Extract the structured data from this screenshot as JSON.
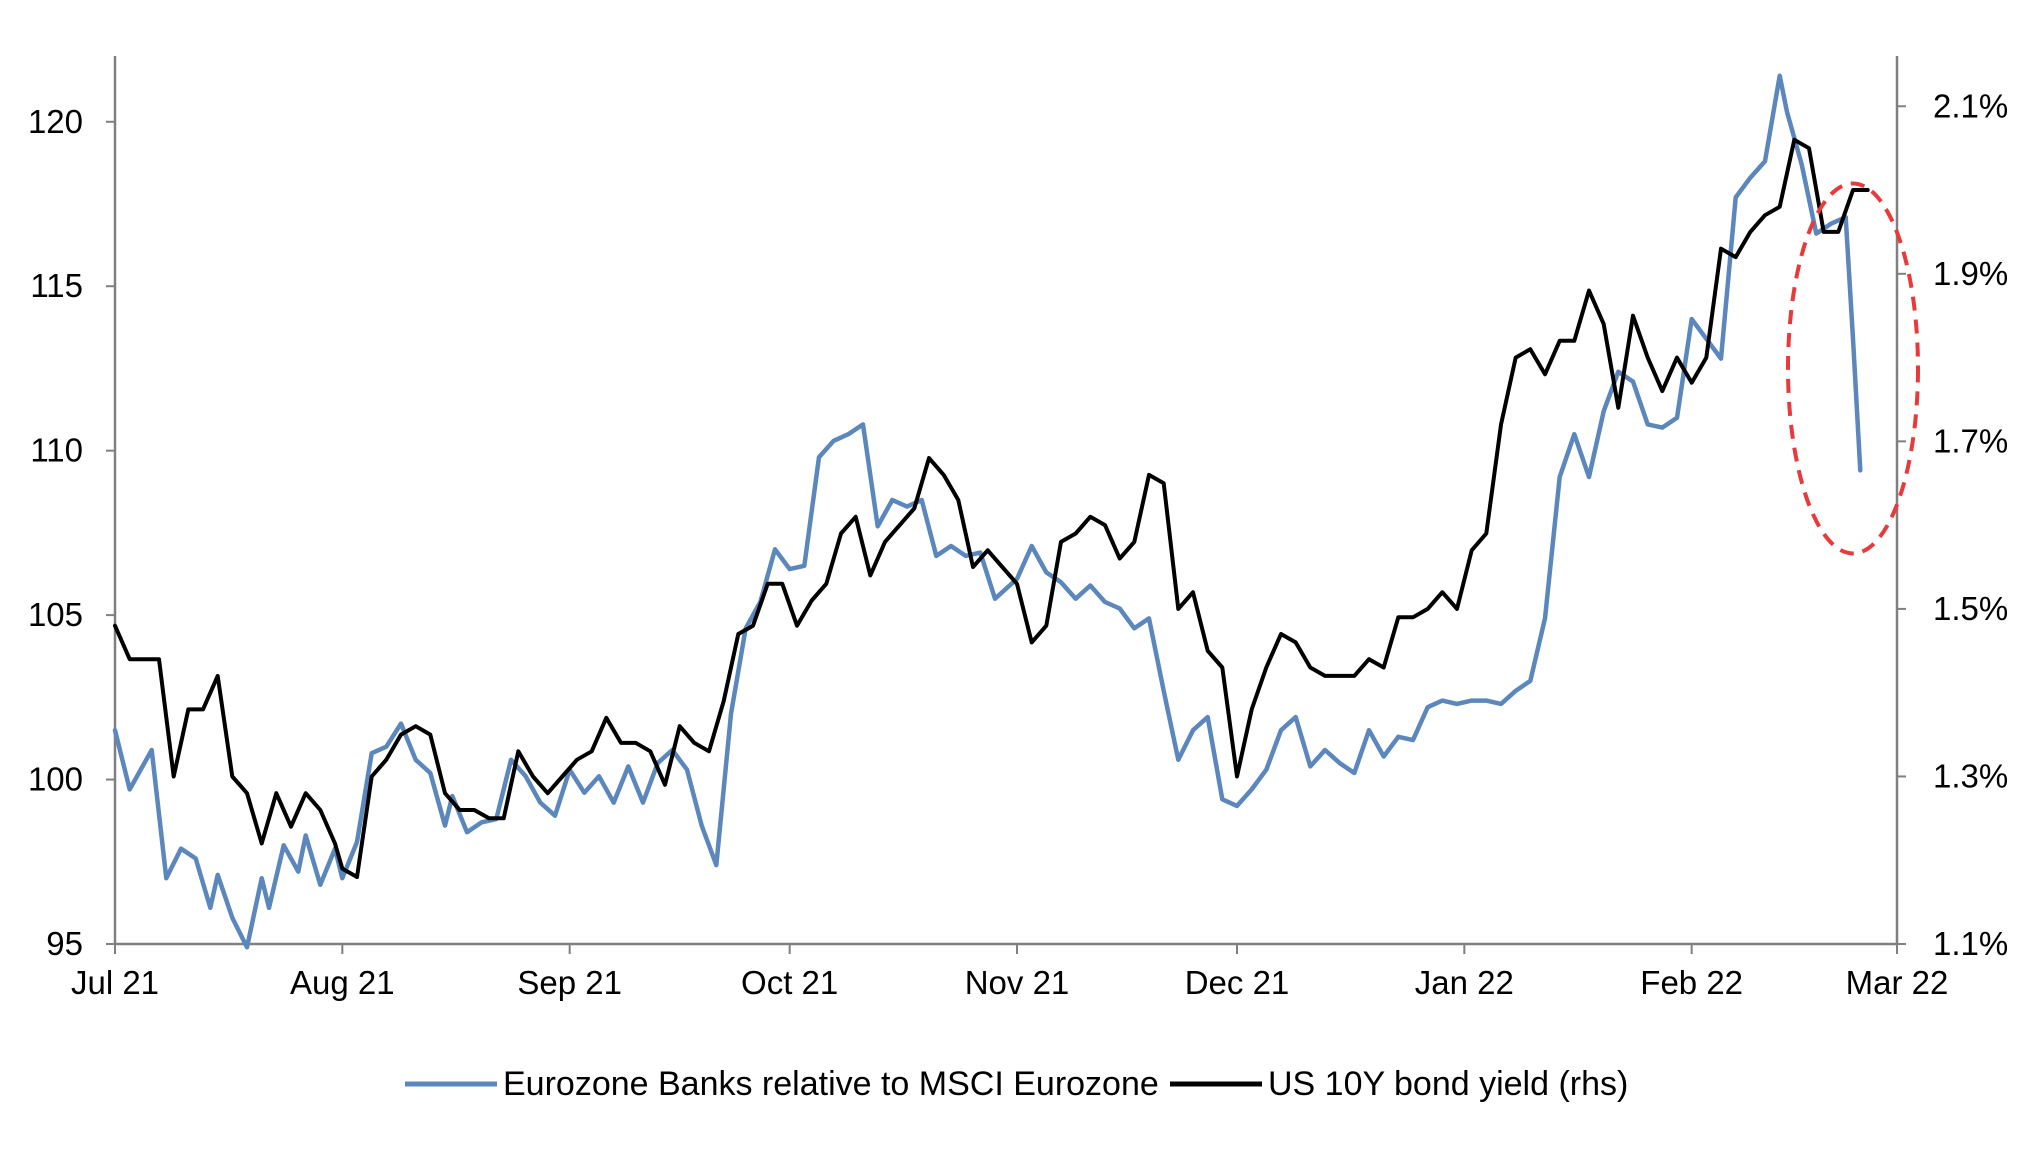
{
  "chart_data": {
    "type": "line",
    "title": "",
    "x_ticks": [
      "Jul 21",
      "Aug 21",
      "Sep 21",
      "Oct 21",
      "Nov 21",
      "Dec 21",
      "Jan 22",
      "Feb 22",
      "Mar 22"
    ],
    "x_range": [
      "2021-07-01",
      "2022-03-01"
    ],
    "y_left": {
      "label": "",
      "range": [
        95,
        122
      ],
      "ticks": [
        "95",
        "100",
        "105",
        "110",
        "115",
        "120"
      ]
    },
    "y_right": {
      "label": "",
      "range": [
        1.1,
        2.16
      ],
      "ticks": [
        "1.1%",
        "1.3%",
        "1.5%",
        "1.7%",
        "1.9%",
        "2.1%"
      ]
    },
    "grid": false,
    "legend_position": "bottom",
    "series": [
      {
        "name": "Eurozone Banks relative to MSCI Eurozone",
        "axis": "left",
        "color": "#5b87bd",
        "x": [
          "2021-07-01",
          "2021-07-03",
          "2021-07-06",
          "2021-07-08",
          "2021-07-10",
          "2021-07-12",
          "2021-07-14",
          "2021-07-15",
          "2021-07-17",
          "2021-07-19",
          "2021-07-21",
          "2021-07-22",
          "2021-07-24",
          "2021-07-26",
          "2021-07-27",
          "2021-07-29",
          "2021-07-31",
          "2021-08-01",
          "2021-08-03",
          "2021-08-05",
          "2021-08-07",
          "2021-08-09",
          "2021-08-11",
          "2021-08-13",
          "2021-08-15",
          "2021-08-16",
          "2021-08-18",
          "2021-08-20",
          "2021-08-22",
          "2021-08-24",
          "2021-08-26",
          "2021-08-28",
          "2021-08-30",
          "2021-09-01",
          "2021-09-03",
          "2021-09-05",
          "2021-09-07",
          "2021-09-09",
          "2021-09-11",
          "2021-09-13",
          "2021-09-15",
          "2021-09-17",
          "2021-09-19",
          "2021-09-21",
          "2021-09-23",
          "2021-09-25",
          "2021-09-27",
          "2021-09-29",
          "2021-10-01",
          "2021-10-03",
          "2021-10-05",
          "2021-10-07",
          "2021-10-09",
          "2021-10-11",
          "2021-10-13",
          "2021-10-15",
          "2021-10-17",
          "2021-10-19",
          "2021-10-21",
          "2021-10-23",
          "2021-10-25",
          "2021-10-27",
          "2021-10-29",
          "2021-11-01",
          "2021-11-03",
          "2021-11-05",
          "2021-11-07",
          "2021-11-09",
          "2021-11-11",
          "2021-11-13",
          "2021-11-15",
          "2021-11-17",
          "2021-11-19",
          "2021-11-21",
          "2021-11-23",
          "2021-11-25",
          "2021-11-27",
          "2021-11-29",
          "2021-12-01",
          "2021-12-03",
          "2021-12-05",
          "2021-12-07",
          "2021-12-09",
          "2021-12-11",
          "2021-12-13",
          "2021-12-15",
          "2021-12-17",
          "2021-12-19",
          "2021-12-21",
          "2021-12-23",
          "2021-12-25",
          "2021-12-27",
          "2021-12-29",
          "2021-12-31",
          "2022-01-02",
          "2022-01-04",
          "2022-01-06",
          "2022-01-08",
          "2022-01-10",
          "2022-01-12",
          "2022-01-14",
          "2022-01-16",
          "2022-01-18",
          "2022-01-20",
          "2022-01-22",
          "2022-01-24",
          "2022-01-26",
          "2022-01-28",
          "2022-01-30",
          "2022-02-01",
          "2022-02-03",
          "2022-02-05",
          "2022-02-07",
          "2022-02-09",
          "2022-02-11",
          "2022-02-13",
          "2022-02-14",
          "2022-02-16",
          "2022-02-18",
          "2022-02-20",
          "2022-02-22",
          "2022-02-23",
          "2022-02-24"
        ],
        "values": [
          101.5,
          99.7,
          100.9,
          97.0,
          97.9,
          97.6,
          96.1,
          97.1,
          95.8,
          94.9,
          97.0,
          96.1,
          98.0,
          97.2,
          98.3,
          96.8,
          97.9,
          97.0,
          98.1,
          100.8,
          101.0,
          101.7,
          100.6,
          100.2,
          98.6,
          99.5,
          98.4,
          98.7,
          98.8,
          100.6,
          100.1,
          99.3,
          98.9,
          100.3,
          99.6,
          100.1,
          99.3,
          100.4,
          99.3,
          100.5,
          100.9,
          100.3,
          98.6,
          97.4,
          102.0,
          104.6,
          105.4,
          107.0,
          106.4,
          106.5,
          109.8,
          110.3,
          110.5,
          110.8,
          107.7,
          108.5,
          108.3,
          108.5,
          106.8,
          107.1,
          106.8,
          106.9,
          105.5,
          106.1,
          107.1,
          106.3,
          106.0,
          105.5,
          105.9,
          105.4,
          105.2,
          104.6,
          104.9,
          102.7,
          100.6,
          101.5,
          101.9,
          99.4,
          99.2,
          99.7,
          100.3,
          101.5,
          101.9,
          100.4,
          100.9,
          100.5,
          100.2,
          101.5,
          100.7,
          101.3,
          101.2,
          102.2,
          102.4,
          102.3,
          102.4,
          102.4,
          102.3,
          102.7,
          103.0,
          104.9,
          109.2,
          110.5,
          109.2,
          111.2,
          112.4,
          112.1,
          110.8,
          110.7,
          111.0,
          114.0,
          113.4,
          112.8,
          117.7,
          118.3,
          118.8,
          121.4,
          120.3,
          118.7,
          116.6,
          116.9,
          117.1,
          113.4,
          109.4
        ]
      },
      {
        "name": "US 10Y bond yield (rhs)",
        "axis": "right",
        "color": "#000000",
        "x": [
          "2021-07-01",
          "2021-07-03",
          "2021-07-05",
          "2021-07-07",
          "2021-07-09",
          "2021-07-11",
          "2021-07-13",
          "2021-07-15",
          "2021-07-17",
          "2021-07-19",
          "2021-07-21",
          "2021-07-23",
          "2021-07-25",
          "2021-07-27",
          "2021-07-29",
          "2021-07-31",
          "2021-08-01",
          "2021-08-03",
          "2021-08-05",
          "2021-08-07",
          "2021-08-09",
          "2021-08-11",
          "2021-08-13",
          "2021-08-15",
          "2021-08-17",
          "2021-08-19",
          "2021-08-21",
          "2021-08-23",
          "2021-08-25",
          "2021-08-27",
          "2021-08-29",
          "2021-08-31",
          "2021-09-02",
          "2021-09-04",
          "2021-09-06",
          "2021-09-08",
          "2021-09-10",
          "2021-09-12",
          "2021-09-14",
          "2021-09-16",
          "2021-09-18",
          "2021-09-20",
          "2021-09-22",
          "2021-09-24",
          "2021-09-26",
          "2021-09-28",
          "2021-09-30",
          "2021-10-02",
          "2021-10-04",
          "2021-10-06",
          "2021-10-08",
          "2021-10-10",
          "2021-10-12",
          "2021-10-14",
          "2021-10-16",
          "2021-10-18",
          "2021-10-20",
          "2021-10-22",
          "2021-10-24",
          "2021-10-26",
          "2021-10-28",
          "2021-10-30",
          "2021-11-01",
          "2021-11-03",
          "2021-11-05",
          "2021-11-07",
          "2021-11-09",
          "2021-11-11",
          "2021-11-13",
          "2021-11-15",
          "2021-11-17",
          "2021-11-19",
          "2021-11-21",
          "2021-11-23",
          "2021-11-25",
          "2021-11-27",
          "2021-11-29",
          "2021-12-01",
          "2021-12-03",
          "2021-12-05",
          "2021-12-07",
          "2021-12-09",
          "2021-12-11",
          "2021-12-13",
          "2021-12-15",
          "2021-12-17",
          "2021-12-19",
          "2021-12-21",
          "2021-12-23",
          "2021-12-25",
          "2021-12-27",
          "2021-12-29",
          "2021-12-31",
          "2022-01-02",
          "2022-01-04",
          "2022-01-06",
          "2022-01-08",
          "2022-01-10",
          "2022-01-12",
          "2022-01-14",
          "2022-01-16",
          "2022-01-18",
          "2022-01-20",
          "2022-01-22",
          "2022-01-24",
          "2022-01-26",
          "2022-01-28",
          "2022-01-30",
          "2022-02-01",
          "2022-02-03",
          "2022-02-05",
          "2022-02-07",
          "2022-02-09",
          "2022-02-11",
          "2022-02-13",
          "2022-02-15",
          "2022-02-17",
          "2022-02-19",
          "2022-02-21",
          "2022-02-23",
          "2022-02-25"
        ],
        "values": [
          1.48,
          1.44,
          1.44,
          1.44,
          1.3,
          1.38,
          1.38,
          1.42,
          1.3,
          1.28,
          1.22,
          1.28,
          1.24,
          1.28,
          1.26,
          1.22,
          1.19,
          1.18,
          1.3,
          1.32,
          1.35,
          1.36,
          1.35,
          1.28,
          1.26,
          1.26,
          1.25,
          1.25,
          1.33,
          1.3,
          1.28,
          1.3,
          1.32,
          1.33,
          1.37,
          1.34,
          1.34,
          1.33,
          1.29,
          1.36,
          1.34,
          1.33,
          1.39,
          1.47,
          1.48,
          1.53,
          1.53,
          1.48,
          1.51,
          1.53,
          1.59,
          1.61,
          1.54,
          1.58,
          1.6,
          1.62,
          1.68,
          1.66,
          1.63,
          1.55,
          1.57,
          1.55,
          1.53,
          1.46,
          1.48,
          1.58,
          1.59,
          1.61,
          1.6,
          1.56,
          1.58,
          1.66,
          1.65,
          1.5,
          1.52,
          1.45,
          1.43,
          1.3,
          1.38,
          1.43,
          1.47,
          1.46,
          1.43,
          1.42,
          1.42,
          1.42,
          1.44,
          1.43,
          1.49,
          1.49,
          1.5,
          1.52,
          1.5,
          1.57,
          1.59,
          1.72,
          1.8,
          1.81,
          1.78,
          1.82,
          1.82,
          1.88,
          1.84,
          1.74,
          1.85,
          1.8,
          1.76,
          1.8,
          1.77,
          1.8,
          1.93,
          1.92,
          1.95,
          1.97,
          1.98,
          2.06,
          2.05,
          1.95,
          1.95,
          2.0,
          2.0
        ]
      }
    ],
    "annotation": {
      "type": "dashed-ellipse",
      "color": "#e8393b",
      "x_center": "2022-02-23",
      "y_center": 112.5
    }
  },
  "legend": {
    "items": [
      {
        "label": "Eurozone Banks relative to MSCI Eurozone",
        "color": "#5b87bd"
      },
      {
        "label": "US 10Y bond yield (rhs)",
        "color": "#000000"
      }
    ]
  }
}
